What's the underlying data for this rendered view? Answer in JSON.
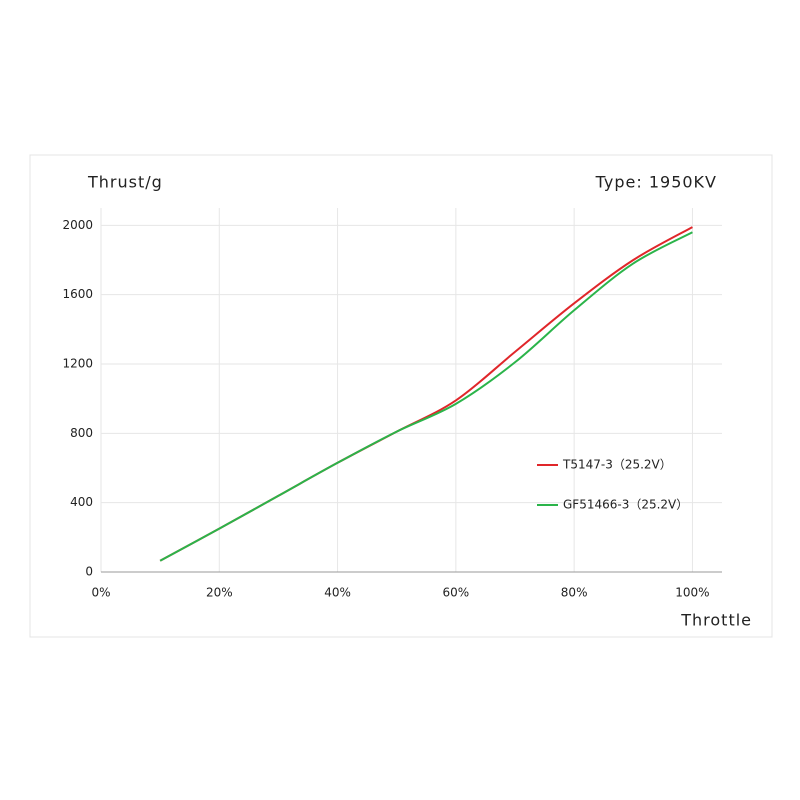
{
  "chart_data": {
    "type": "line",
    "y_label": "Thrust/g",
    "annotation": "Type: 1950KV",
    "x_label": "Throttle",
    "x": [
      10,
      20,
      30,
      40,
      50,
      60,
      70,
      80,
      90,
      100
    ],
    "series": [
      {
        "name": "T5147-3（25.2V）",
        "color": "#e0262a",
        "values": [
          65,
          250,
          440,
          630,
          810,
          990,
          1270,
          1550,
          1800,
          1990
        ]
      },
      {
        "name": "GF51466-3（25.2V）",
        "color": "#2bb44a",
        "values": [
          65,
          250,
          440,
          630,
          810,
          970,
          1210,
          1510,
          1780,
          1960
        ]
      }
    ],
    "xlim": [
      0,
      105
    ],
    "xticks": [
      {
        "value": 0,
        "label": "0%"
      },
      {
        "value": 20,
        "label": "20%"
      },
      {
        "value": 40,
        "label": "40%"
      },
      {
        "value": 60,
        "label": "60%"
      },
      {
        "value": 80,
        "label": "80%"
      },
      {
        "value": 100,
        "label": "100%"
      }
    ],
    "ylim": [
      0,
      2100
    ],
    "yticks": [
      0,
      400,
      800,
      1200,
      1600,
      2000
    ],
    "grid": true,
    "legend": "right"
  }
}
